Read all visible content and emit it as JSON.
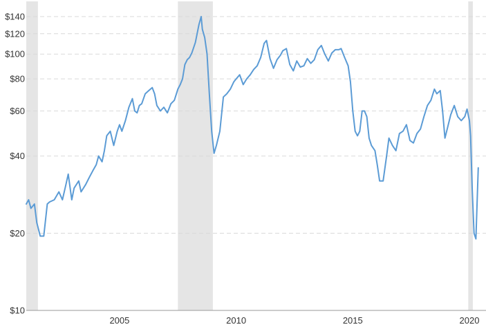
{
  "chart_data": {
    "type": "line",
    "title": "",
    "xlabel": "",
    "ylabel": "",
    "yscale": "log",
    "ylim": [
      10,
      150
    ],
    "xlim": [
      2001.0,
      2020.0
    ],
    "grid": true,
    "legend": "none",
    "line_color": "#5b9bd5",
    "recession_color": "#e5e5e5",
    "y_ticks": [
      {
        "value": 10,
        "label": "$10"
      },
      {
        "value": 20,
        "label": "$20"
      },
      {
        "value": 40,
        "label": "$40"
      },
      {
        "value": 60,
        "label": "$60"
      },
      {
        "value": 80,
        "label": "$80"
      },
      {
        "value": 100,
        "label": "$100"
      },
      {
        "value": 120,
        "label": "$120"
      },
      {
        "value": 140,
        "label": "$140"
      }
    ],
    "x_ticks": [
      {
        "value": 2005,
        "label": "2005"
      },
      {
        "value": 2010,
        "label": "2010"
      },
      {
        "value": 2015,
        "label": "2015"
      },
      {
        "value": 2020,
        "label": "2020"
      }
    ],
    "recessions": [
      {
        "start": 2001.0,
        "end": 2001.5
      },
      {
        "start": 2007.5,
        "end": 2009.0
      },
      {
        "start": 2019.95,
        "end": 2020.15
      }
    ],
    "series": [
      {
        "points": [
          [
            2001.0,
            26
          ],
          [
            2001.1,
            27
          ],
          [
            2001.2,
            25
          ],
          [
            2001.35,
            26
          ],
          [
            2001.45,
            22
          ],
          [
            2001.6,
            19.5
          ],
          [
            2001.75,
            19.5
          ],
          [
            2001.9,
            26
          ],
          [
            2002.0,
            26.5
          ],
          [
            2002.2,
            27
          ],
          [
            2002.4,
            29
          ],
          [
            2002.55,
            27
          ],
          [
            2002.7,
            31
          ],
          [
            2002.8,
            34
          ],
          [
            2002.95,
            27
          ],
          [
            2003.05,
            30
          ],
          [
            2003.25,
            32
          ],
          [
            2003.35,
            29
          ],
          [
            2003.55,
            31
          ],
          [
            2003.7,
            33
          ],
          [
            2003.85,
            35
          ],
          [
            2004.0,
            37
          ],
          [
            2004.1,
            40
          ],
          [
            2004.25,
            38
          ],
          [
            2004.35,
            42
          ],
          [
            2004.45,
            48
          ],
          [
            2004.6,
            50
          ],
          [
            2004.75,
            44
          ],
          [
            2004.9,
            50
          ],
          [
            2005.0,
            53
          ],
          [
            2005.1,
            50
          ],
          [
            2005.25,
            55
          ],
          [
            2005.4,
            62
          ],
          [
            2005.55,
            67
          ],
          [
            2005.65,
            60
          ],
          [
            2005.75,
            59
          ],
          [
            2005.85,
            63
          ],
          [
            2005.95,
            64
          ],
          [
            2006.1,
            70
          ],
          [
            2006.25,
            72
          ],
          [
            2006.4,
            74
          ],
          [
            2006.5,
            70
          ],
          [
            2006.6,
            63
          ],
          [
            2006.75,
            60
          ],
          [
            2006.9,
            62
          ],
          [
            2007.05,
            59
          ],
          [
            2007.2,
            64
          ],
          [
            2007.35,
            66
          ],
          [
            2007.5,
            73
          ],
          [
            2007.6,
            76
          ],
          [
            2007.7,
            80
          ],
          [
            2007.8,
            91
          ],
          [
            2007.9,
            95
          ],
          [
            2008.0,
            97
          ],
          [
            2008.1,
            101
          ],
          [
            2008.25,
            111
          ],
          [
            2008.4,
            130
          ],
          [
            2008.5,
            140
          ],
          [
            2008.55,
            125
          ],
          [
            2008.65,
            116
          ],
          [
            2008.75,
            100
          ],
          [
            2008.85,
            70
          ],
          [
            2008.95,
            50
          ],
          [
            2009.05,
            41
          ],
          [
            2009.15,
            44
          ],
          [
            2009.3,
            50
          ],
          [
            2009.45,
            68
          ],
          [
            2009.6,
            70
          ],
          [
            2009.75,
            73
          ],
          [
            2009.9,
            78
          ],
          [
            2010.0,
            80
          ],
          [
            2010.15,
            83
          ],
          [
            2010.3,
            76
          ],
          [
            2010.45,
            80
          ],
          [
            2010.6,
            83
          ],
          [
            2010.75,
            87
          ],
          [
            2010.9,
            90
          ],
          [
            2011.05,
            97
          ],
          [
            2011.2,
            110
          ],
          [
            2011.3,
            113
          ],
          [
            2011.45,
            96
          ],
          [
            2011.6,
            88
          ],
          [
            2011.75,
            95
          ],
          [
            2011.9,
            99
          ],
          [
            2012.0,
            103
          ],
          [
            2012.15,
            105
          ],
          [
            2012.3,
            91
          ],
          [
            2012.45,
            86
          ],
          [
            2012.6,
            94
          ],
          [
            2012.75,
            89
          ],
          [
            2012.9,
            90
          ],
          [
            2013.05,
            96
          ],
          [
            2013.2,
            92
          ],
          [
            2013.35,
            95
          ],
          [
            2013.5,
            104
          ],
          [
            2013.65,
            108
          ],
          [
            2013.8,
            100
          ],
          [
            2013.95,
            94
          ],
          [
            2014.1,
            101
          ],
          [
            2014.25,
            104
          ],
          [
            2014.4,
            104
          ],
          [
            2014.5,
            105
          ],
          [
            2014.65,
            97
          ],
          [
            2014.8,
            90
          ],
          [
            2014.9,
            78
          ],
          [
            2015.0,
            60
          ],
          [
            2015.1,
            50
          ],
          [
            2015.2,
            48
          ],
          [
            2015.3,
            50
          ],
          [
            2015.4,
            60
          ],
          [
            2015.5,
            60
          ],
          [
            2015.6,
            57
          ],
          [
            2015.7,
            47
          ],
          [
            2015.8,
            44
          ],
          [
            2015.95,
            42
          ],
          [
            2016.05,
            37
          ],
          [
            2016.15,
            32
          ],
          [
            2016.3,
            32
          ],
          [
            2016.45,
            40
          ],
          [
            2016.55,
            47
          ],
          [
            2016.7,
            44
          ],
          [
            2016.85,
            42
          ],
          [
            2017.0,
            49
          ],
          [
            2017.15,
            50
          ],
          [
            2017.3,
            53
          ],
          [
            2017.45,
            46
          ],
          [
            2017.6,
            45
          ],
          [
            2017.75,
            49
          ],
          [
            2017.9,
            51
          ],
          [
            2018.05,
            57
          ],
          [
            2018.2,
            63
          ],
          [
            2018.35,
            66
          ],
          [
            2018.5,
            73
          ],
          [
            2018.6,
            70
          ],
          [
            2018.75,
            72
          ],
          [
            2018.85,
            60
          ],
          [
            2018.95,
            47
          ],
          [
            2019.05,
            51
          ],
          [
            2019.2,
            58
          ],
          [
            2019.35,
            63
          ],
          [
            2019.5,
            57
          ],
          [
            2019.65,
            55
          ],
          [
            2019.8,
            57
          ],
          [
            2019.9,
            61
          ],
          [
            2020.0,
            55
          ],
          [
            2020.05,
            48
          ],
          [
            2020.12,
            30
          ],
          [
            2020.2,
            20
          ],
          [
            2020.28,
            19
          ],
          [
            2020.38,
            36
          ]
        ]
      }
    ]
  }
}
